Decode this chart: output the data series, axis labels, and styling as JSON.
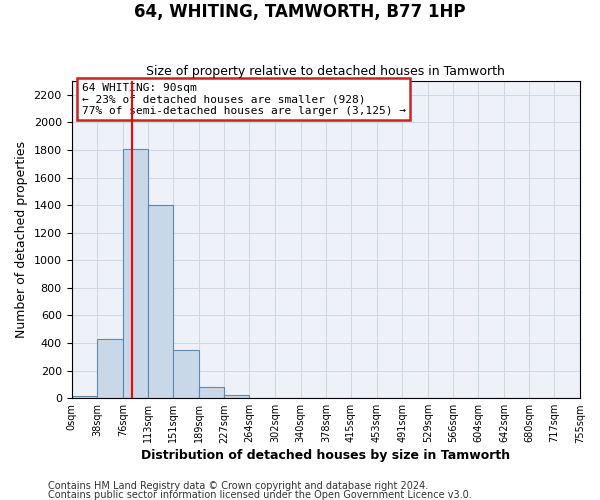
{
  "title": "64, WHITING, TAMWORTH, B77 1HP",
  "subtitle": "Size of property relative to detached houses in Tamworth",
  "xlabel": "Distribution of detached houses by size in Tamworth",
  "ylabel": "Number of detached properties",
  "bar_bins": [
    0,
    38,
    76,
    113,
    151,
    189,
    227,
    264,
    302,
    340,
    378,
    415,
    453,
    491,
    529,
    566,
    604,
    642,
    680,
    717,
    755
  ],
  "bar_heights": [
    15,
    430,
    1810,
    1400,
    350,
    80,
    25,
    0,
    0,
    0,
    0,
    0,
    0,
    0,
    0,
    0,
    0,
    0,
    0,
    0
  ],
  "bar_color": "#c8d8e8",
  "bar_edge_color": "#5a8ab0",
  "red_line_x": 90,
  "ylim": [
    0,
    2300
  ],
  "yticks": [
    0,
    200,
    400,
    600,
    800,
    1000,
    1200,
    1400,
    1600,
    1800,
    2000,
    2200
  ],
  "xtick_labels": [
    "0sqm",
    "38sqm",
    "76sqm",
    "113sqm",
    "151sqm",
    "189sqm",
    "227sqm",
    "264sqm",
    "302sqm",
    "340sqm",
    "378sqm",
    "415sqm",
    "453sqm",
    "491sqm",
    "529sqm",
    "566sqm",
    "604sqm",
    "642sqm",
    "680sqm",
    "717sqm",
    "755sqm"
  ],
  "annotation_line1": "64 WHITING: 90sqm",
  "annotation_line2": "← 23% of detached houses are smaller (928)",
  "annotation_line3": "77% of semi-detached houses are larger (3,125) →",
  "grid_color": "#d0d8e8",
  "background_color": "#eef2f8",
  "footnote1": "Contains HM Land Registry data © Crown copyright and database right 2024.",
  "footnote2": "Contains public sector information licensed under the Open Government Licence v3.0.",
  "fig_width": 6.0,
  "fig_height": 5.0,
  "fig_dpi": 100
}
